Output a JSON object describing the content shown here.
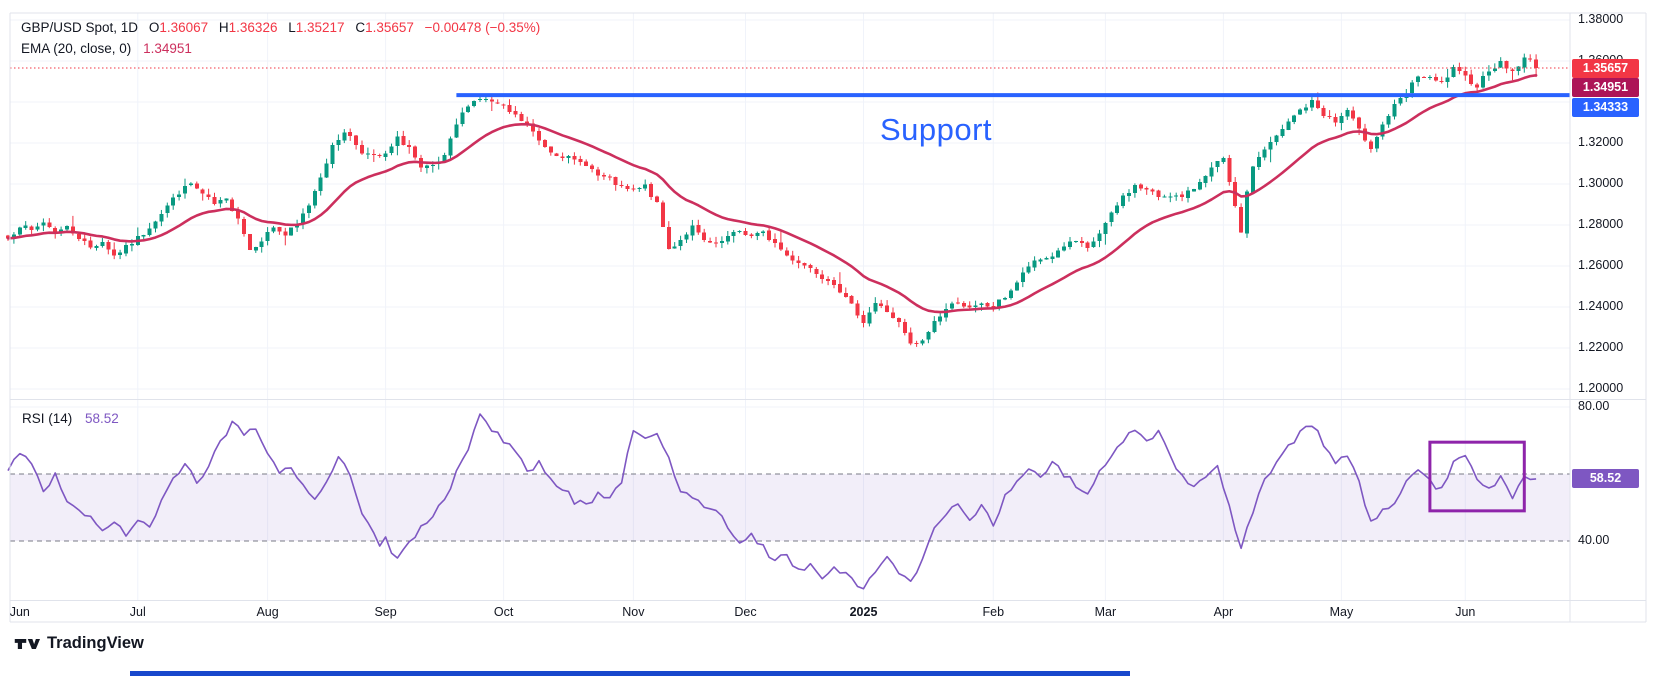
{
  "header": {
    "symbol": "GBP/USD Spot, 1D",
    "fields": [
      {
        "label": "O",
        "value": "1.36067"
      },
      {
        "label": "H",
        "value": "1.36326"
      },
      {
        "label": "L",
        "value": "1.35217"
      },
      {
        "label": "C",
        "value": "1.35657"
      }
    ],
    "change": "−0.00478 (−0.35%)",
    "indicator": {
      "name": "EMA (20, close, 0)",
      "value": "1.34951"
    }
  },
  "rsi_legend": {
    "name": "RSI (14)",
    "value": "58.52"
  },
  "annotations": {
    "support_text": "Support"
  },
  "footer": {
    "brand": "TradingView"
  },
  "colors": {
    "up": "#089981",
    "down": "#F23645",
    "ema": "#CC2F5D",
    "support_line": "#2962FF",
    "rsi_line": "#7E57C2",
    "rsi_band_fill": "rgba(126,87,194,0.10)",
    "dashed_band": "#787B86",
    "grid": "#F0F3FA",
    "separator": "#E0E3EB",
    "highlight_rect": "#8E24AA",
    "badge_close": "#F23645",
    "badge_ema": "#AD1457",
    "badge_support": "#2962FF",
    "badge_rsi": "#7E57C2",
    "price_line_dotted": "#F23645",
    "bottom_bar": "#1848CC"
  },
  "price_axis": {
    "ticks": [
      1.38,
      1.36,
      1.32,
      1.3,
      1.28,
      1.26,
      1.24,
      1.22,
      1.2
    ],
    "badges": [
      {
        "text": "1.35657",
        "price": 1.35657,
        "color_key": "badge_close"
      },
      {
        "text": "1.34951",
        "price": 1.34951,
        "color_key": "badge_ema"
      },
      {
        "text": "1.34333",
        "price": 1.34333,
        "color_key": "badge_support"
      }
    ]
  },
  "rsi_axis": {
    "ticks": [
      80,
      40
    ],
    "badge": {
      "text": "58.52",
      "value": 58.52
    }
  },
  "time_axis": {
    "labels": [
      {
        "text": "Jun",
        "day": 2
      },
      {
        "text": "Jul",
        "day": 22
      },
      {
        "text": "Aug",
        "day": 44
      },
      {
        "text": "Sep",
        "day": 64
      },
      {
        "text": "Oct",
        "day": 84
      },
      {
        "text": "Nov",
        "day": 106
      },
      {
        "text": "Dec",
        "day": 125
      },
      {
        "text": "2025",
        "day": 145,
        "bold": true
      },
      {
        "text": "Feb",
        "day": 167
      },
      {
        "text": "Mar",
        "day": 186
      },
      {
        "text": "Apr",
        "day": 206
      },
      {
        "text": "May",
        "day": 226
      },
      {
        "text": "Jun",
        "day": 247
      }
    ]
  },
  "chart_data": [
    {
      "type": "candlestick",
      "title": "GBP/USD Spot",
      "interval": "1D",
      "current": {
        "open": 1.36067,
        "high": 1.36326,
        "low": 1.35217,
        "close": 1.35657,
        "change": -0.00478,
        "change_pct": -0.35
      },
      "ema": {
        "period": 20,
        "value": 1.34951
      },
      "support": {
        "level": 1.34333,
        "label": "Support",
        "from_day": 76
      },
      "ylim": [
        1.19,
        1.385
      ],
      "n_days": 260,
      "close_path": [
        [
          0,
          1.2735
        ],
        [
          2,
          1.28
        ],
        [
          4,
          1.277
        ],
        [
          6,
          1.2815
        ],
        [
          8,
          1.2765
        ],
        [
          10,
          1.279
        ],
        [
          12,
          1.274
        ],
        [
          14,
          1.269
        ],
        [
          16,
          1.272
        ],
        [
          18,
          1.265
        ],
        [
          20,
          1.269
        ],
        [
          23,
          1.276
        ],
        [
          26,
          1.286
        ],
        [
          29,
          1.296
        ],
        [
          31,
          1.3
        ],
        [
          33,
          1.295
        ],
        [
          35,
          1.29
        ],
        [
          37,
          1.292
        ],
        [
          39,
          1.284
        ],
        [
          41,
          1.268
        ],
        [
          43,
          1.273
        ],
        [
          45,
          1.279
        ],
        [
          47,
          1.275
        ],
        [
          49,
          1.28
        ],
        [
          51,
          1.29
        ],
        [
          53,
          1.304
        ],
        [
          55,
          1.318
        ],
        [
          57,
          1.326
        ],
        [
          58,
          1.323
        ],
        [
          60,
          1.316
        ],
        [
          62,
          1.313
        ],
        [
          64,
          1.314
        ],
        [
          66,
          1.322
        ],
        [
          68,
          1.318
        ],
        [
          70,
          1.307
        ],
        [
          72,
          1.3085
        ],
        [
          74,
          1.313
        ],
        [
          76,
          1.329
        ],
        [
          78,
          1.339
        ],
        [
          80,
          1.342
        ],
        [
          82,
          1.34
        ],
        [
          84,
          1.337
        ],
        [
          86,
          1.333
        ],
        [
          88,
          1.329
        ],
        [
          90,
          1.321
        ],
        [
          92,
          1.316
        ],
        [
          94,
          1.314
        ],
        [
          96,
          1.311
        ],
        [
          98,
          1.31
        ],
        [
          100,
          1.304
        ],
        [
          102,
          1.302
        ],
        [
          104,
          1.298
        ],
        [
          106,
          1.2965
        ],
        [
          108,
          1.299
        ],
        [
          110,
          1.29
        ],
        [
          112,
          1.268
        ],
        [
          114,
          1.273
        ],
        [
          116,
          1.279
        ],
        [
          118,
          1.272
        ],
        [
          120,
          1.27
        ],
        [
          122,
          1.274
        ],
        [
          124,
          1.277
        ],
        [
          126,
          1.2745
        ],
        [
          128,
          1.276
        ],
        [
          130,
          1.271
        ],
        [
          132,
          1.265
        ],
        [
          134,
          1.262
        ],
        [
          136,
          1.259
        ],
        [
          138,
          1.255
        ],
        [
          140,
          1.252
        ],
        [
          142,
          1.244
        ],
        [
          144,
          1.237
        ],
        [
          145,
          1.233
        ],
        [
          147,
          1.242
        ],
        [
          149,
          1.238
        ],
        [
          151,
          1.232
        ],
        [
          153,
          1.2215
        ],
        [
          155,
          1.223
        ],
        [
          157,
          1.233
        ],
        [
          159,
          1.239
        ],
        [
          161,
          1.243
        ],
        [
          163,
          1.239
        ],
        [
          165,
          1.241
        ],
        [
          167,
          1.24
        ],
        [
          169,
          1.245
        ],
        [
          171,
          1.252
        ],
        [
          173,
          1.26
        ],
        [
          175,
          1.263
        ],
        [
          177,
          1.265
        ],
        [
          179,
          1.27
        ],
        [
          181,
          1.272
        ],
        [
          183,
          1.268
        ],
        [
          185,
          1.276
        ],
        [
          187,
          1.285
        ],
        [
          189,
          1.294
        ],
        [
          191,
          1.299
        ],
        [
          193,
          1.297
        ],
        [
          195,
          1.294
        ],
        [
          197,
          1.295
        ],
        [
          199,
          1.293
        ],
        [
          201,
          1.298
        ],
        [
          203,
          1.305
        ],
        [
          205,
          1.31
        ],
        [
          206,
          1.312
        ],
        [
          207,
          1.3
        ],
        [
          208,
          1.288
        ],
        [
          209,
          1.277
        ],
        [
          210,
          1.295
        ],
        [
          211,
          1.309
        ],
        [
          213,
          1.317
        ],
        [
          215,
          1.323
        ],
        [
          217,
          1.33
        ],
        [
          219,
          1.336
        ],
        [
          221,
          1.34
        ],
        [
          223,
          1.334
        ],
        [
          225,
          1.33
        ],
        [
          227,
          1.336
        ],
        [
          229,
          1.326
        ],
        [
          231,
          1.318
        ],
        [
          233,
          1.329
        ],
        [
          235,
          1.338
        ],
        [
          237,
          1.344
        ],
        [
          239,
          1.353
        ],
        [
          241,
          1.351
        ],
        [
          243,
          1.349
        ],
        [
          245,
          1.356
        ],
        [
          247,
          1.352
        ],
        [
          249,
          1.348
        ],
        [
          251,
          1.356
        ],
        [
          253,
          1.359
        ],
        [
          255,
          1.355
        ],
        [
          257,
          1.361
        ],
        [
          258,
          1.3605
        ],
        [
          259,
          1.35657
        ]
      ]
    },
    {
      "type": "line",
      "title": "RSI (14)",
      "current": 58.52,
      "bands": [
        60,
        40
      ],
      "ylim": [
        23,
        83
      ],
      "highlight_rect": {
        "day_start": 241,
        "day_end": 257,
        "value_top": 69.5,
        "value_bottom": 49
      },
      "path": [
        [
          0,
          61
        ],
        [
          2,
          67
        ],
        [
          4,
          63
        ],
        [
          6,
          55
        ],
        [
          8,
          60
        ],
        [
          10,
          52
        ],
        [
          12,
          49
        ],
        [
          14,
          47
        ],
        [
          16,
          44
        ],
        [
          18,
          46
        ],
        [
          20,
          42
        ],
        [
          22,
          47
        ],
        [
          24,
          44
        ],
        [
          26,
          52
        ],
        [
          28,
          58
        ],
        [
          30,
          64
        ],
        [
          32,
          58
        ],
        [
          34,
          62
        ],
        [
          36,
          70
        ],
        [
          38,
          75
        ],
        [
          40,
          72
        ],
        [
          42,
          74
        ],
        [
          44,
          66
        ],
        [
          46,
          61
        ],
        [
          48,
          62
        ],
        [
          50,
          57
        ],
        [
          52,
          53
        ],
        [
          54,
          58
        ],
        [
          56,
          66
        ],
        [
          58,
          60
        ],
        [
          60,
          48
        ],
        [
          62,
          42
        ],
        [
          63,
          38
        ],
        [
          64,
          41
        ],
        [
          65,
          37
        ],
        [
          66,
          35
        ],
        [
          68,
          40
        ],
        [
          70,
          44
        ],
        [
          72,
          47
        ],
        [
          74,
          53
        ],
        [
          76,
          60
        ],
        [
          78,
          68
        ],
        [
          80,
          77
        ],
        [
          82,
          73
        ],
        [
          84,
          70
        ],
        [
          86,
          66
        ],
        [
          88,
          61
        ],
        [
          90,
          63
        ],
        [
          92,
          58
        ],
        [
          94,
          56
        ],
        [
          96,
          52
        ],
        [
          98,
          51
        ],
        [
          100,
          54
        ],
        [
          102,
          52
        ],
        [
          104,
          58
        ],
        [
          106,
          73
        ],
        [
          108,
          70
        ],
        [
          110,
          72
        ],
        [
          112,
          64
        ],
        [
          114,
          55
        ],
        [
          116,
          53
        ],
        [
          118,
          51
        ],
        [
          120,
          50
        ],
        [
          122,
          44
        ],
        [
          124,
          40
        ],
        [
          126,
          42
        ],
        [
          128,
          38
        ],
        [
          130,
          34
        ],
        [
          132,
          36
        ],
        [
          134,
          31
        ],
        [
          136,
          33
        ],
        [
          138,
          28
        ],
        [
          140,
          32
        ],
        [
          142,
          30
        ],
        [
          144,
          27
        ],
        [
          145,
          25
        ],
        [
          147,
          31
        ],
        [
          149,
          35
        ],
        [
          151,
          31
        ],
        [
          153,
          28
        ],
        [
          155,
          35
        ],
        [
          157,
          44
        ],
        [
          159,
          48
        ],
        [
          161,
          52
        ],
        [
          163,
          47
        ],
        [
          165,
          50
        ],
        [
          167,
          45
        ],
        [
          169,
          53
        ],
        [
          171,
          58
        ],
        [
          173,
          62
        ],
        [
          175,
          59
        ],
        [
          177,
          63
        ],
        [
          179,
          60
        ],
        [
          181,
          57
        ],
        [
          183,
          54
        ],
        [
          185,
          61
        ],
        [
          187,
          66
        ],
        [
          189,
          70
        ],
        [
          191,
          74
        ],
        [
          193,
          70
        ],
        [
          195,
          72
        ],
        [
          197,
          65
        ],
        [
          199,
          59
        ],
        [
          201,
          56
        ],
        [
          203,
          60
        ],
        [
          205,
          62
        ],
        [
          207,
          50
        ],
        [
          209,
          38
        ],
        [
          211,
          49
        ],
        [
          213,
          58
        ],
        [
          215,
          64
        ],
        [
          217,
          68
        ],
        [
          219,
          72
        ],
        [
          221,
          75
        ],
        [
          223,
          69
        ],
        [
          225,
          64
        ],
        [
          227,
          66
        ],
        [
          229,
          58
        ],
        [
          231,
          45
        ],
        [
          233,
          49
        ],
        [
          235,
          52
        ],
        [
          237,
          57
        ],
        [
          239,
          62
        ],
        [
          241,
          58
        ],
        [
          243,
          55
        ],
        [
          245,
          64
        ],
        [
          247,
          66
        ],
        [
          249,
          58
        ],
        [
          251,
          55
        ],
        [
          253,
          59
        ],
        [
          255,
          53
        ],
        [
          257,
          60
        ],
        [
          259,
          58.52
        ]
      ]
    }
  ]
}
